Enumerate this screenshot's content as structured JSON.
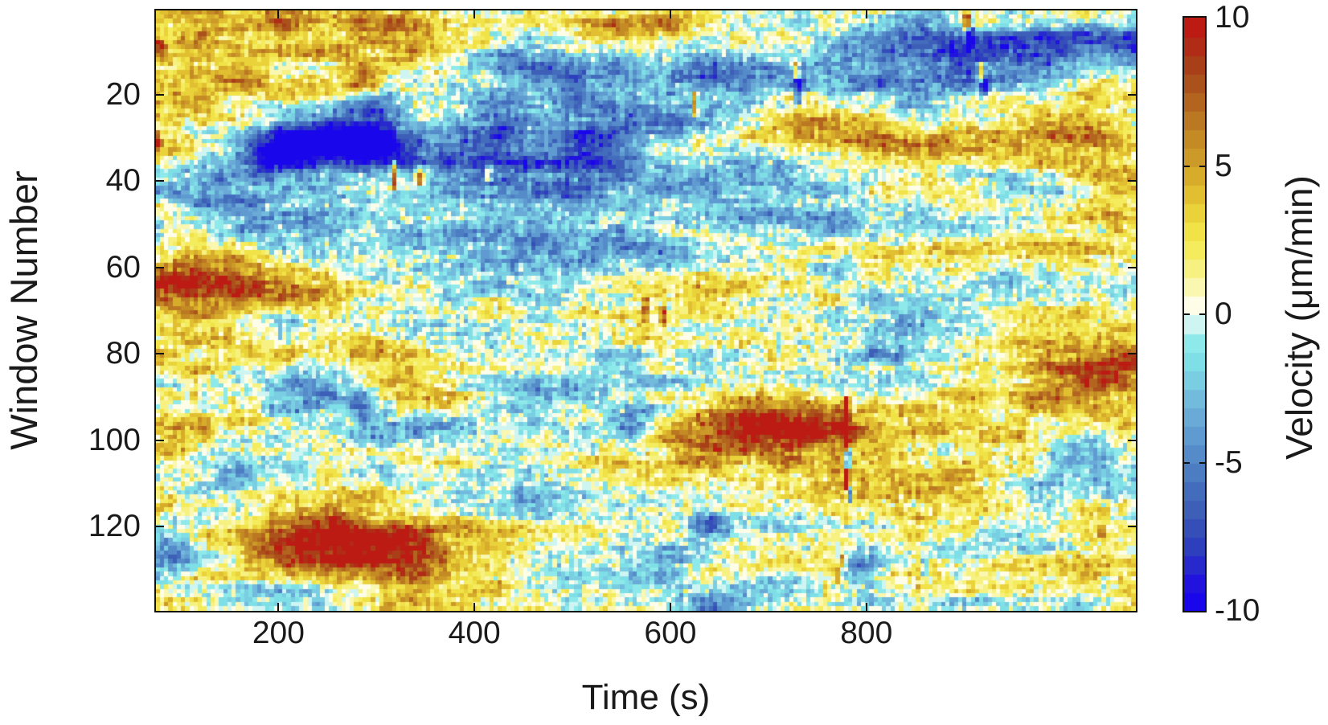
{
  "figure": {
    "background_color": "#ffffff",
    "text_color": "#1a1a1a",
    "axis_color": "#111111"
  },
  "chart_data": {
    "type": "heatmap",
    "title": "",
    "xlabel": "Time (s)",
    "ylabel": "Window Number",
    "colorbar_label": "Velocity (μm/min)",
    "x_range": [
      75,
      1075
    ],
    "y_range": [
      0.5,
      139.5
    ],
    "y_axis_direction": "reversed (window 1 at top)",
    "x_ticks": [
      200,
      400,
      600,
      800
    ],
    "y_ticks": [
      20,
      40,
      60,
      80,
      100,
      120
    ],
    "colorbar_ticks": [
      10,
      5,
      0,
      -5,
      -10
    ],
    "colorbar_inner_ticks": [
      5,
      0,
      -5
    ],
    "value_range": [
      -10,
      10
    ],
    "grid_cols": 232,
    "grid_rows": 140,
    "grid": false,
    "legend_position": "colorbar-right",
    "colormap": {
      "levels": 32,
      "stops": [
        [
          0.0,
          "#1500f2"
        ],
        [
          0.05,
          "#2313dd"
        ],
        [
          0.1,
          "#2c3ac0"
        ],
        [
          0.155,
          "#3a57b5"
        ],
        [
          0.21,
          "#4470bd"
        ],
        [
          0.265,
          "#558bc9"
        ],
        [
          0.32,
          "#67a6d5"
        ],
        [
          0.365,
          "#74bede"
        ],
        [
          0.4,
          "#7cd4e4"
        ],
        [
          0.43,
          "#7fe3e7"
        ],
        [
          0.455,
          "#8feaea"
        ],
        [
          0.475,
          "#b5f1ee"
        ],
        [
          0.49,
          "#ddf7f3"
        ],
        [
          0.5,
          "#ffffff"
        ],
        [
          0.51,
          "#fffef2"
        ],
        [
          0.525,
          "#fdfbd8"
        ],
        [
          0.55,
          "#faf6ab"
        ],
        [
          0.585,
          "#f6f077"
        ],
        [
          0.62,
          "#f3ea52"
        ],
        [
          0.655,
          "#eedd3f"
        ],
        [
          0.69,
          "#e5c834"
        ],
        [
          0.73,
          "#d8ae2c"
        ],
        [
          0.77,
          "#cb9827"
        ],
        [
          0.81,
          "#c08323"
        ],
        [
          0.85,
          "#b56b20"
        ],
        [
          0.89,
          "#ab521c"
        ],
        [
          0.925,
          "#a93d19"
        ],
        [
          0.955,
          "#b02b16"
        ],
        [
          0.98,
          "#ba1d14"
        ],
        [
          1.0,
          "#c21313"
        ]
      ]
    },
    "generation": {
      "seed": 1337,
      "bias": 0.3,
      "noise_octaves": [
        [
          30,
          8,
          2.9
        ],
        [
          10,
          3.2,
          2.1
        ],
        [
          2.2,
          1,
          1.6
        ],
        [
          1,
          3,
          1.3
        ],
        [
          1,
          1,
          1.3
        ]
      ],
      "row_band_noise": [
        40,
        2.5,
        1.3
      ],
      "features": [
        [
          240,
          31,
          48,
          5,
          -9
        ],
        [
          300,
          27,
          22,
          6,
          -7
        ],
        [
          205,
          34,
          26,
          3.5,
          -6
        ],
        [
          150,
          46,
          60,
          6,
          -4.5
        ],
        [
          430,
          38,
          110,
          8,
          -3
        ],
        [
          600,
          27,
          300,
          13,
          -2.6
        ],
        [
          500,
          50,
          250,
          5,
          -2
        ],
        [
          860,
          10,
          190,
          6,
          -2.8
        ],
        [
          995,
          8,
          80,
          5,
          -4
        ],
        [
          700,
          12,
          55,
          4,
          -3.2
        ],
        [
          480,
          12,
          55,
          4,
          -3
        ],
        [
          520,
          33,
          25,
          3,
          -4.5
        ],
        [
          820,
          82,
          55,
          5,
          -5
        ],
        [
          565,
          97,
          16,
          4,
          -5
        ],
        [
          240,
          90,
          28,
          5,
          -5
        ],
        [
          285,
          92,
          10,
          3,
          -4
        ],
        [
          145,
          108,
          22,
          4,
          -4
        ],
        [
          215,
          107,
          16,
          3,
          -3.5
        ],
        [
          95,
          123,
          18,
          3,
          -3.8
        ],
        [
          1025,
          103,
          25,
          4,
          -4.5
        ],
        [
          650,
          139,
          35,
          3,
          -3.5
        ],
        [
          1055,
          60,
          22,
          4,
          -3.5
        ],
        [
          520,
          107,
          130,
          7,
          -2.6
        ],
        [
          900,
          116,
          110,
          8,
          -2.2
        ],
        [
          795,
          130,
          13,
          2.5,
          -6
        ],
        [
          640,
          120,
          12,
          2.5,
          -4.5
        ],
        [
          75,
          6,
          25,
          4,
          -5
        ],
        [
          110,
          60,
          40,
          6,
          6.5
        ],
        [
          160,
          66,
          75,
          9,
          3.8
        ],
        [
          120,
          18,
          55,
          8,
          3.2
        ],
        [
          260,
          7,
          80,
          6,
          3.2
        ],
        [
          545,
          4,
          55,
          3,
          4
        ],
        [
          350,
          2,
          200,
          3,
          2.5
        ],
        [
          850,
          29,
          100,
          4,
          6.5
        ],
        [
          1010,
          33,
          55,
          5,
          4.5
        ],
        [
          745,
          27,
          35,
          3,
          4.5
        ],
        [
          1035,
          23,
          45,
          5,
          4
        ],
        [
          1060,
          47,
          35,
          9,
          4.5
        ],
        [
          985,
          52,
          55,
          5,
          3.5
        ],
        [
          1010,
          82,
          60,
          6,
          6
        ],
        [
          1070,
          86,
          35,
          6,
          4.5
        ],
        [
          755,
          100,
          110,
          7,
          5
        ],
        [
          690,
          96,
          50,
          4,
          6
        ],
        [
          600,
          104,
          70,
          6,
          4
        ],
        [
          850,
          108,
          70,
          7,
          3.5
        ],
        [
          560,
          112,
          60,
          6,
          3.5
        ],
        [
          300,
          126,
          100,
          6,
          5
        ],
        [
          250,
          123,
          45,
          4,
          6
        ],
        [
          950,
          131,
          50,
          4,
          4.5
        ],
        [
          1030,
          130,
          35,
          3,
          4
        ],
        [
          95,
          97,
          30,
          3,
          4.5
        ],
        [
          290,
          17,
          15,
          2.5,
          6.5
        ],
        [
          80,
          137,
          50,
          4,
          3.5
        ],
        [
          420,
          137,
          70,
          4,
          3
        ],
        [
          78,
          10,
          6,
          2,
          7
        ],
        [
          75,
          3,
          25,
          3,
          4
        ]
      ],
      "streaks": [
        [
          318,
          36,
          42,
          9
        ],
        [
          345,
          37,
          41,
          7.5
        ],
        [
          415,
          37,
          40,
          7
        ],
        [
          575,
          68,
          72,
          7.5
        ],
        [
          593,
          70,
          73,
          6.5
        ],
        [
          625,
          20,
          25,
          7.5
        ],
        [
          728,
          13,
          16,
          6.5
        ],
        [
          731,
          17,
          22,
          -7.5
        ],
        [
          903,
          2,
          5,
          8.5
        ],
        [
          906,
          5,
          9,
          -8.5
        ],
        [
          917,
          13,
          17,
          8.5
        ],
        [
          920,
          17,
          20,
          -7.5
        ],
        [
          780,
          90,
          102,
          9.5
        ],
        [
          782,
          102,
          106,
          -9
        ],
        [
          780,
          107,
          111,
          8.5
        ],
        [
          783,
          111,
          114,
          -8
        ],
        [
          776,
          127,
          129,
          7
        ],
        [
          770,
          129,
          133,
          6
        ],
        [
          860,
          128,
          131,
          -6
        ],
        [
          1040,
          120,
          122,
          6
        ],
        [
          77,
          29,
          32,
          7
        ]
      ]
    }
  }
}
